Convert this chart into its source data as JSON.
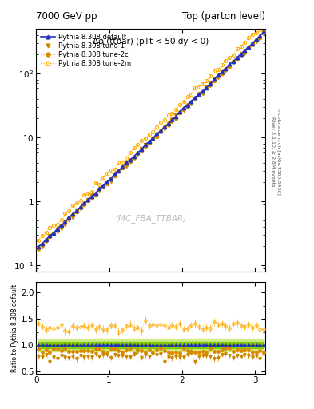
{
  "title_left": "7000 GeV pp",
  "title_right": "Top (parton level)",
  "main_title": "Δϕ (t̅tbar) (pTt̅ < 50 dy < 0)",
  "watermark": "(MC_FBA_TTBAR)",
  "rivet_text": "Rivet 3.1.10, ≥ 2.8M events",
  "arxiv_text": "mcplots.cern.ch [arXiv:1306.3436]",
  "ylabel_ratio": "Ratio to Pythia 8.308 default",
  "xlim": [
    0,
    3.14159
  ],
  "ylim_main_log": [
    -1.1,
    2.7
  ],
  "ylim_ratio": [
    0.45,
    2.2
  ],
  "xticks": [
    0,
    1,
    2,
    3
  ],
  "col_default": "#2233bb",
  "col_tune1": "#cc8800",
  "col_tune2c": "#dd8800",
  "col_tune2m": "#ffaa00",
  "ratio_band_outer": "#ccee88",
  "ratio_band_inner": "#88cc00",
  "ratio_band_line": "#336600",
  "n_points": 60,
  "legend_labels": [
    "Pythia 8.308 default",
    "Pythia 8.308 tune-1",
    "Pythia 8.308 tune-2c",
    "Pythia 8.308 tune-2m"
  ]
}
